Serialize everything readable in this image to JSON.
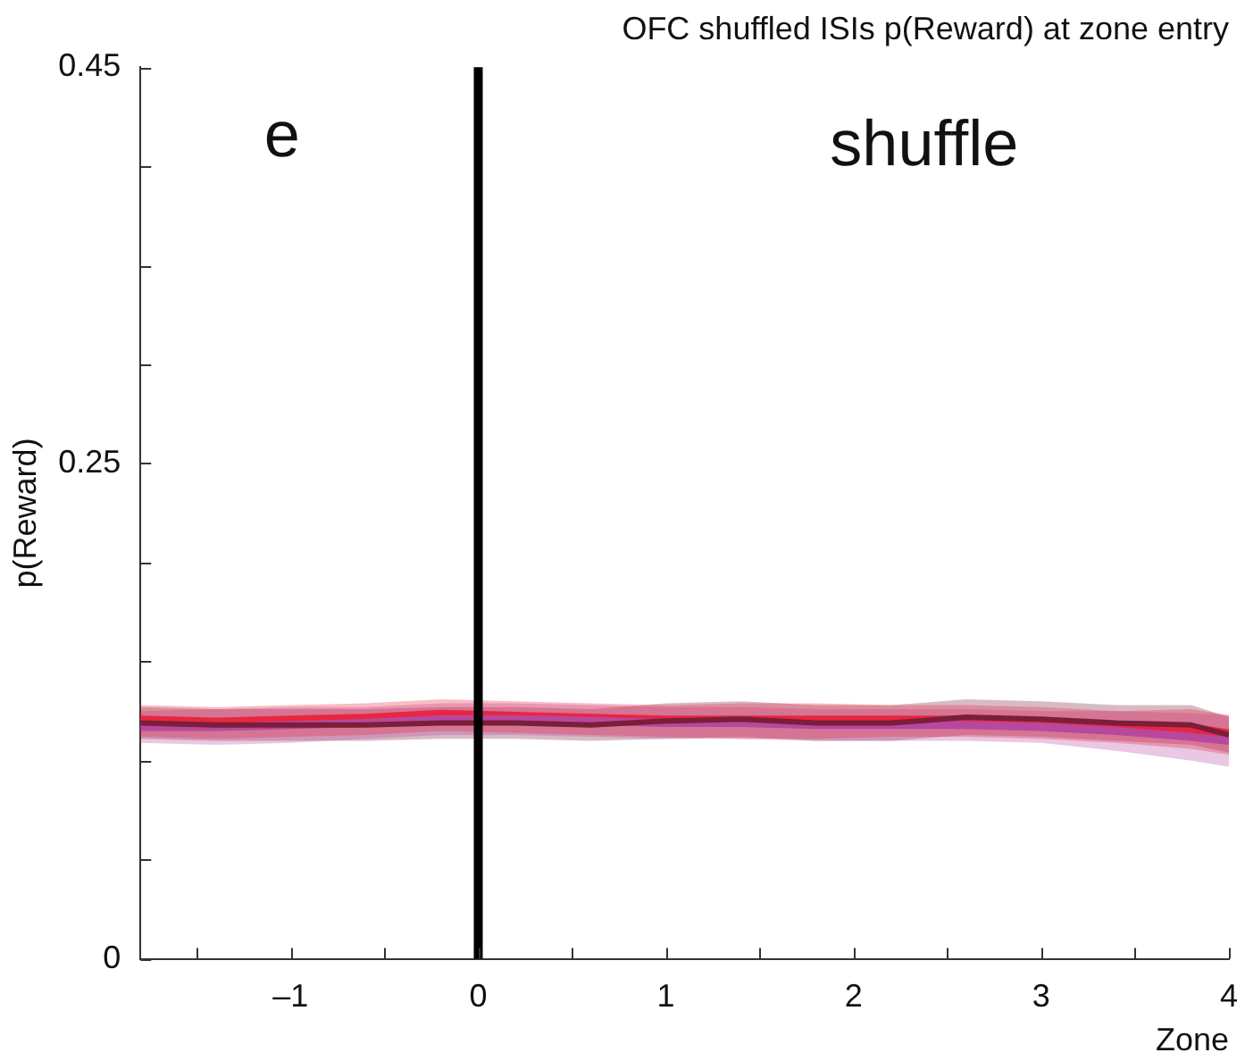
{
  "chart_data": {
    "type": "line",
    "title": "OFC shuffled ISIs p(Reward) at zone entry",
    "xlabel": "Zone",
    "ylabel": "p(Reward)",
    "annotations": [
      "e",
      "shuffle"
    ],
    "x": [
      -1.8,
      -1.4,
      -1,
      -0.6,
      -0.2,
      0.2,
      0.6,
      1,
      1.4,
      1.8,
      2.2,
      2.6,
      3,
      3.4,
      3.8,
      4
    ],
    "series": [
      {
        "color": "#e8263f",
        "values": [
          0.12,
          0.119,
          0.12,
          0.121,
          0.123,
          0.122,
          0.121,
          0.12,
          0.12,
          0.12,
          0.12,
          0.12,
          0.119,
          0.117,
          0.116,
          0.113
        ],
        "lower": [
          0.112,
          0.111,
          0.112,
          0.113,
          0.115,
          0.114,
          0.113,
          0.112,
          0.111,
          0.111,
          0.112,
          0.112,
          0.111,
          0.109,
          0.106,
          0.103
        ],
        "upper": [
          0.128,
          0.127,
          0.128,
          0.129,
          0.131,
          0.13,
          0.129,
          0.128,
          0.129,
          0.129,
          0.128,
          0.128,
          0.127,
          0.125,
          0.126,
          0.123
        ]
      },
      {
        "color": "#b8479e",
        "values": [
          0.117,
          0.117,
          0.118,
          0.119,
          0.121,
          0.121,
          0.12,
          0.119,
          0.119,
          0.118,
          0.118,
          0.118,
          0.117,
          0.115,
          0.112,
          0.11
        ],
        "lower": [
          0.109,
          0.108,
          0.109,
          0.111,
          0.113,
          0.113,
          0.112,
          0.111,
          0.111,
          0.11,
          0.11,
          0.11,
          0.109,
          0.105,
          0.1,
          0.097
        ],
        "upper": [
          0.125,
          0.126,
          0.127,
          0.127,
          0.129,
          0.129,
          0.128,
          0.127,
          0.127,
          0.126,
          0.126,
          0.126,
          0.125,
          0.125,
          0.124,
          0.123
        ]
      },
      {
        "color": "#7a1e3a",
        "values": [
          0.119,
          0.118,
          0.118,
          0.118,
          0.119,
          0.119,
          0.118,
          0.12,
          0.121,
          0.119,
          0.119,
          0.122,
          0.121,
          0.119,
          0.118,
          0.113
        ],
        "lower": [
          0.111,
          0.11,
          0.11,
          0.11,
          0.111,
          0.111,
          0.11,
          0.111,
          0.112,
          0.11,
          0.11,
          0.113,
          0.112,
          0.11,
          0.108,
          0.104
        ],
        "upper": [
          0.127,
          0.126,
          0.126,
          0.126,
          0.127,
          0.127,
          0.126,
          0.129,
          0.13,
          0.128,
          0.128,
          0.131,
          0.13,
          0.128,
          0.128,
          0.122
        ]
      }
    ],
    "ref_lines": [
      {
        "axis": "x",
        "value": 0,
        "color": "#000000"
      }
    ],
    "xlim": [
      -1.8,
      4
    ],
    "xticks": [
      {
        "value": -1.5,
        "label": null
      },
      {
        "value": -1,
        "label": "–1"
      },
      {
        "value": -0.5,
        "label": null
      },
      0,
      {
        "value": 0.5,
        "label": null
      },
      1,
      {
        "value": 1.5,
        "label": null
      },
      2,
      {
        "value": 2.5,
        "label": null
      },
      3,
      {
        "value": 3.5,
        "label": null
      },
      4
    ],
    "ylim": [
      0,
      0.45
    ],
    "yticks": [
      0,
      {
        "value": 0.05,
        "label": null
      },
      {
        "value": 0.1,
        "label": null
      },
      {
        "value": 0.15,
        "label": null
      },
      {
        "value": 0.2,
        "label": null
      },
      0.25,
      {
        "value": 0.3,
        "label": null
      },
      {
        "value": 0.35,
        "label": null
      },
      {
        "value": 0.4,
        "label": null
      },
      0.45
    ]
  }
}
